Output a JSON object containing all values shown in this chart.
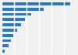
{
  "values": [
    21900,
    13500,
    9500,
    7500,
    6200,
    5000,
    3800,
    3000,
    2200,
    900
  ],
  "bar_color": "#2979c5",
  "background_color": "#f0f0f0",
  "bar_bg_color": "#f0f0f0",
  "grid_color": "#ffffff",
  "xlim": [
    0,
    24000
  ],
  "figsize": [
    1.0,
    0.71
  ],
  "dpi": 100
}
